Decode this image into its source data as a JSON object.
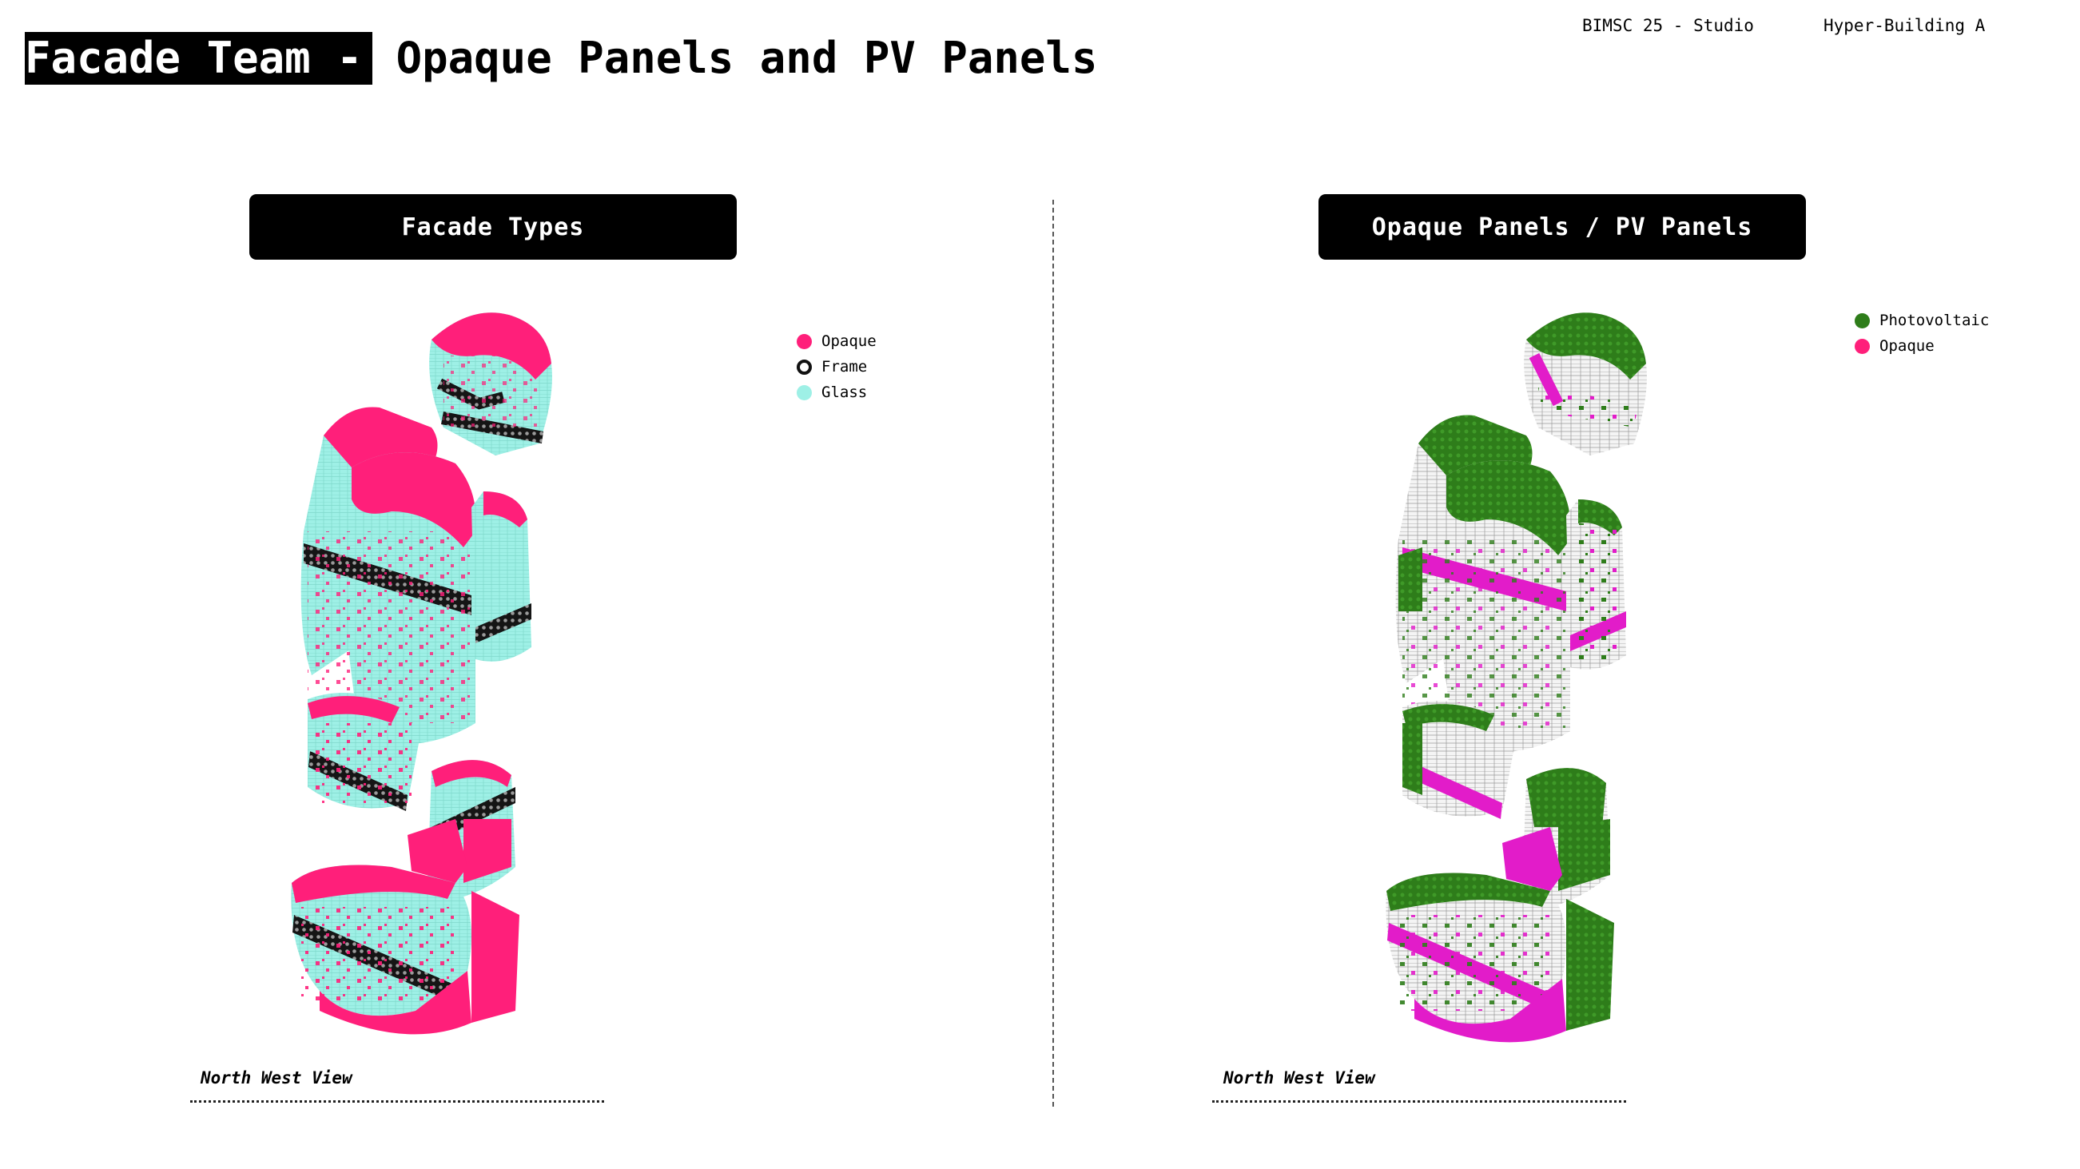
{
  "title": {
    "highlight": "Facade Team -",
    "rest": "Opaque Panels and PV Panels"
  },
  "header": {
    "course": "BIMSC 25 - Studio",
    "project": "Hyper-Building A"
  },
  "panels": [
    {
      "title": "Facade Types",
      "view_label": "North West View",
      "legend": [
        {
          "label": "Opaque",
          "color": "#ff1f7a",
          "style": "filled"
        },
        {
          "label": "Frame",
          "color": "#111111",
          "style": "ring"
        },
        {
          "label": "Glass",
          "color": "#9ef0e6",
          "style": "filled"
        }
      ]
    },
    {
      "title": "Opaque Panels / PV Panels",
      "view_label": "North West View",
      "legend": [
        {
          "label": "Photovoltaic",
          "color": "#2e7d1a",
          "style": "filled"
        },
        {
          "label": "Opaque",
          "color": "#ff1f7a",
          "style": "filled"
        }
      ]
    }
  ],
  "colors": {
    "opaque": "#ff1f7a",
    "glass": "#9ef0e6",
    "frame": "#111111",
    "pv": "#2e7d1a",
    "panel_white": "#f4f4f4",
    "pv_magenta": "#e21cc9"
  }
}
